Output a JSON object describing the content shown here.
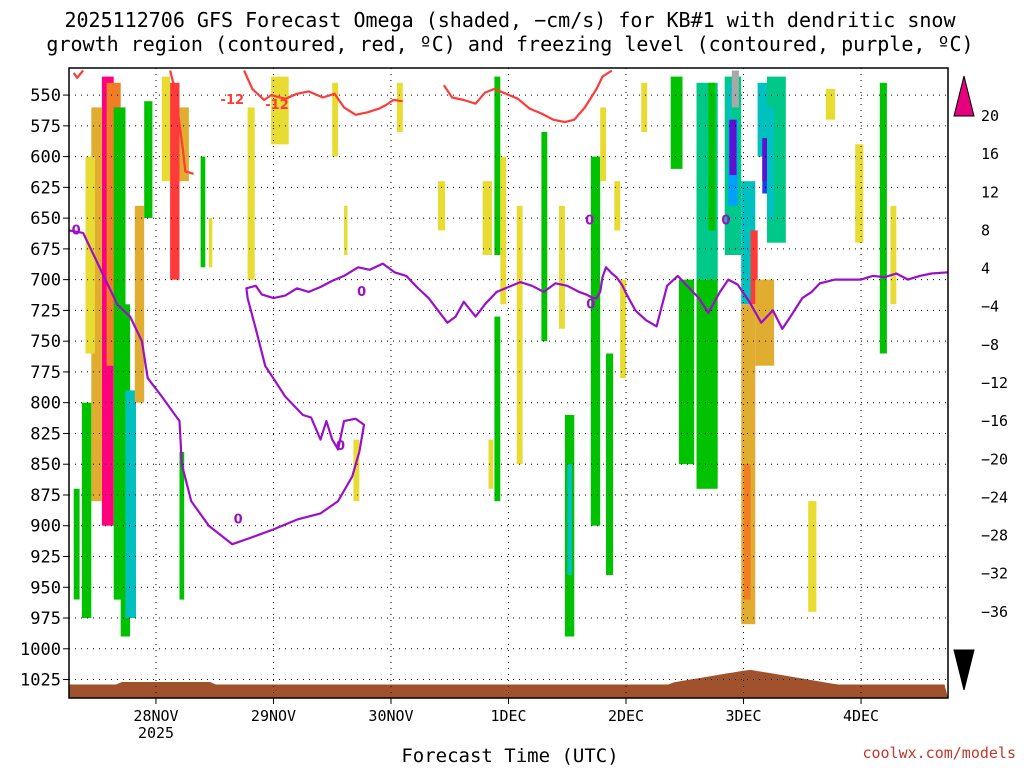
{
  "chart_data": {
    "type": "heatmap",
    "title_line1": "2025112706 GFS Forecast Omega (shaded, −cm/s) for KB#1 with dendritic snow",
    "title_line2": "growth region (contoured, red, ºC) and freezing level (contoured, purple, ºC)",
    "xlabel": "Forecast Time (UTC)",
    "credit": "coolwx.com/models",
    "y_axis": {
      "unit": "hPa",
      "reversed": true,
      "ylim": [
        1040,
        528
      ],
      "ticks": [
        550,
        575,
        600,
        625,
        650,
        675,
        700,
        725,
        750,
        775,
        800,
        825,
        850,
        875,
        900,
        925,
        950,
        975,
        1000,
        1025
      ]
    },
    "x_axis": {
      "range_days": [
        -0.74,
        6.74
      ],
      "ticks": [
        {
          "label": "28NOV",
          "day": 0,
          "sub": "2025"
        },
        {
          "label": "29NOV",
          "day": 1
        },
        {
          "label": "30NOV",
          "day": 2
        },
        {
          "label": "1DEC",
          "day": 3
        },
        {
          "label": "2DEC",
          "day": 4
        },
        {
          "label": "3DEC",
          "day": 5
        },
        {
          "label": "4DEC",
          "day": 6
        }
      ]
    },
    "grid": "dotted",
    "colorbar": {
      "placement": "right",
      "ticks": [
        "20",
        "16",
        "12",
        "8",
        "4",
        "−4",
        "−8",
        "−12",
        "−16",
        "−20",
        "−24",
        "−28",
        "−32",
        "−36"
      ],
      "colors": [
        "#ff007f",
        "#ff3a3a",
        "#f07e24",
        "#e0ad30",
        "#e8dc32",
        "#ffffff",
        "#00c200",
        "#00c888",
        "#00c0c0",
        "#00a0ff",
        "#1f3fe8",
        "#6010d0",
        "#9000d0",
        "#a8a8a8"
      ],
      "top_arrow": "#e5007e",
      "bottom_arrow": "#000000"
    },
    "shaded_cells": [
      {
        "d0": -0.46,
        "d1": -0.36,
        "p0": 535,
        "p1": 900,
        "c": 0
      },
      {
        "d0": -0.42,
        "d1": -0.3,
        "p0": 540,
        "p1": 770,
        "c": 2
      },
      {
        "d0": -0.55,
        "d1": -0.46,
        "p0": 560,
        "p1": 880,
        "c": 3
      },
      {
        "d0": -0.36,
        "d1": -0.26,
        "p0": 560,
        "p1": 960,
        "c": 6
      },
      {
        "d0": -0.3,
        "d1": -0.22,
        "p0": 720,
        "p1": 990,
        "c": 6
      },
      {
        "d0": -0.26,
        "d1": -0.17,
        "p0": 790,
        "p1": 975,
        "c": 8
      },
      {
        "d0": -0.6,
        "d1": -0.52,
        "p0": 600,
        "p1": 760,
        "c": 4
      },
      {
        "d0": -0.63,
        "d1": -0.55,
        "p0": 800,
        "p1": 975,
        "c": 6
      },
      {
        "d0": -0.7,
        "d1": -0.65,
        "p0": 870,
        "p1": 960,
        "c": 6
      },
      {
        "d0": -0.18,
        "d1": -0.1,
        "p0": 640,
        "p1": 800,
        "c": 3
      },
      {
        "d0": -0.1,
        "d1": -0.03,
        "p0": 555,
        "p1": 650,
        "c": 6
      },
      {
        "d0": 0.05,
        "d1": 0.12,
        "p0": 535,
        "p1": 620,
        "c": 4
      },
      {
        "d0": 0.12,
        "d1": 0.2,
        "p0": 540,
        "p1": 700,
        "c": 1
      },
      {
        "d0": 0.2,
        "d1": 0.28,
        "p0": 560,
        "p1": 620,
        "c": 3
      },
      {
        "d0": 0.2,
        "d1": 0.24,
        "p0": 840,
        "p1": 960,
        "c": 6
      },
      {
        "d0": 0.38,
        "d1": 0.42,
        "p0": 600,
        "p1": 690,
        "c": 6
      },
      {
        "d0": 0.45,
        "d1": 0.48,
        "p0": 650,
        "p1": 690,
        "c": 4
      },
      {
        "d0": 0.78,
        "d1": 0.84,
        "p0": 560,
        "p1": 700,
        "c": 4
      },
      {
        "d0": 0.98,
        "d1": 1.13,
        "p0": 535,
        "p1": 590,
        "c": 4
      },
      {
        "d0": 1.5,
        "d1": 1.55,
        "p0": 540,
        "p1": 600,
        "c": 4
      },
      {
        "d0": 1.6,
        "d1": 1.63,
        "p0": 640,
        "p1": 680,
        "c": 4
      },
      {
        "d0": 1.68,
        "d1": 1.73,
        "p0": 830,
        "p1": 880,
        "c": 4
      },
      {
        "d0": 2.05,
        "d1": 2.1,
        "p0": 540,
        "p1": 580,
        "c": 4
      },
      {
        "d0": 2.4,
        "d1": 2.46,
        "p0": 620,
        "p1": 660,
        "c": 4
      },
      {
        "d0": 2.78,
        "d1": 2.86,
        "p0": 620,
        "p1": 680,
        "c": 4
      },
      {
        "d0": 2.83,
        "d1": 2.87,
        "p0": 830,
        "p1": 870,
        "c": 4
      },
      {
        "d0": 2.88,
        "d1": 2.93,
        "p0": 535,
        "p1": 680,
        "c": 6
      },
      {
        "d0": 2.93,
        "d1": 2.98,
        "p0": 600,
        "p1": 720,
        "c": 4
      },
      {
        "d0": 3.07,
        "d1": 3.12,
        "p0": 640,
        "p1": 850,
        "c": 4
      },
      {
        "d0": 2.88,
        "d1": 2.93,
        "p0": 730,
        "p1": 880,
        "c": 6
      },
      {
        "d0": 3.28,
        "d1": 3.33,
        "p0": 580,
        "p1": 750,
        "c": 6
      },
      {
        "d0": 3.43,
        "d1": 3.48,
        "p0": 640,
        "p1": 740,
        "c": 4
      },
      {
        "d0": 3.48,
        "d1": 3.56,
        "p0": 810,
        "p1": 990,
        "c": 6
      },
      {
        "d0": 3.5,
        "d1": 3.54,
        "p0": 850,
        "p1": 940,
        "c": 8
      },
      {
        "d0": 3.7,
        "d1": 3.78,
        "p0": 600,
        "p1": 900,
        "c": 6
      },
      {
        "d0": 3.78,
        "d1": 3.83,
        "p0": 560,
        "p1": 620,
        "c": 4
      },
      {
        "d0": 3.83,
        "d1": 3.89,
        "p0": 760,
        "p1": 940,
        "c": 6
      },
      {
        "d0": 3.9,
        "d1": 3.95,
        "p0": 620,
        "p1": 660,
        "c": 4
      },
      {
        "d0": 3.95,
        "d1": 4.0,
        "p0": 700,
        "p1": 780,
        "c": 4
      },
      {
        "d0": 4.13,
        "d1": 4.18,
        "p0": 540,
        "p1": 580,
        "c": 4
      },
      {
        "d0": 4.38,
        "d1": 4.48,
        "p0": 535,
        "p1": 610,
        "c": 6
      },
      {
        "d0": 4.45,
        "d1": 4.58,
        "p0": 700,
        "p1": 850,
        "c": 6
      },
      {
        "d0": 4.6,
        "d1": 4.78,
        "p0": 540,
        "p1": 700,
        "c": 7
      },
      {
        "d0": 4.6,
        "d1": 4.78,
        "p0": 700,
        "p1": 870,
        "c": 6
      },
      {
        "d0": 4.7,
        "d1": 4.76,
        "p0": 540,
        "p1": 660,
        "c": 6
      },
      {
        "d0": 4.84,
        "d1": 4.98,
        "p0": 535,
        "p1": 680,
        "c": 7
      },
      {
        "d0": 4.86,
        "d1": 4.9,
        "p0": 540,
        "p1": 570,
        "c": 8
      },
      {
        "d0": 4.87,
        "d1": 4.95,
        "p0": 570,
        "p1": 640,
        "c": 9
      },
      {
        "d0": 4.9,
        "d1": 4.96,
        "p0": 530,
        "p1": 560,
        "c": 13
      },
      {
        "d0": 4.88,
        "d1": 4.94,
        "p0": 570,
        "p1": 615,
        "c": 11
      },
      {
        "d0": 4.98,
        "d1": 5.1,
        "p0": 620,
        "p1": 720,
        "c": 8
      },
      {
        "d0": 4.98,
        "d1": 5.1,
        "p0": 720,
        "p1": 980,
        "c": 3
      },
      {
        "d0": 5.06,
        "d1": 5.12,
        "p0": 660,
        "p1": 720,
        "c": 1
      },
      {
        "d0": 5.0,
        "d1": 5.06,
        "p0": 850,
        "p1": 960,
        "c": 2
      },
      {
        "d0": 5.1,
        "d1": 5.26,
        "p0": 700,
        "p1": 770,
        "c": 3
      },
      {
        "d0": 5.12,
        "d1": 5.2,
        "p0": 540,
        "p1": 600,
        "c": 8
      },
      {
        "d0": 5.16,
        "d1": 5.22,
        "p0": 590,
        "p1": 630,
        "c": 10
      },
      {
        "d0": 5.16,
        "d1": 5.22,
        "p0": 585,
        "p1": 620,
        "c": 11
      },
      {
        "d0": 5.2,
        "d1": 5.36,
        "p0": 535,
        "p1": 670,
        "c": 7
      },
      {
        "d0": 5.2,
        "d1": 5.26,
        "p0": 560,
        "p1": 650,
        "c": 8
      },
      {
        "d0": 5.7,
        "d1": 5.78,
        "p0": 545,
        "p1": 570,
        "c": 4
      },
      {
        "d0": 5.55,
        "d1": 5.62,
        "p0": 880,
        "p1": 970,
        "c": 4
      },
      {
        "d0": 5.95,
        "d1": 6.02,
        "p0": 590,
        "p1": 670,
        "c": 4
      },
      {
        "d0": 6.16,
        "d1": 6.22,
        "p0": 540,
        "p1": 760,
        "c": 6
      },
      {
        "d0": 6.25,
        "d1": 6.3,
        "p0": 640,
        "p1": 720,
        "c": 4
      }
    ],
    "contours": [
      {
        "name": "-12",
        "color": "#ff3a3a",
        "label": "-12",
        "label_at": [
          [
            0.65,
            554
          ],
          [
            1.03,
            558
          ]
        ],
        "segments": [
          [
            [
              -0.7,
              532
            ],
            [
              -0.67,
              536
            ],
            [
              -0.62,
              530
            ]
          ],
          [
            [
              0.12,
              530
            ],
            [
              0.16,
              545
            ],
            [
              0.23,
              595
            ],
            [
              0.25,
              612
            ],
            [
              0.32,
              614
            ]
          ],
          [
            [
              0.75,
              530
            ],
            [
              0.82,
              545
            ],
            [
              0.92,
              554
            ],
            [
              0.98,
              550
            ],
            [
              1.1,
              553
            ],
            [
              1.2,
              549
            ],
            [
              1.3,
              547
            ],
            [
              1.42,
              552
            ],
            [
              1.52,
              549
            ],
            [
              1.6,
              560
            ],
            [
              1.7,
              566
            ],
            [
              1.8,
              564
            ],
            [
              1.9,
              561
            ],
            [
              1.96,
              558
            ],
            [
              2.02,
              554
            ],
            [
              2.1,
              555
            ]
          ],
          [
            [
              2.45,
              542
            ],
            [
              2.52,
              552
            ],
            [
              2.62,
              554
            ],
            [
              2.72,
              557
            ],
            [
              2.8,
              548
            ],
            [
              2.88,
              545
            ],
            [
              2.98,
              549
            ],
            [
              3.08,
              553
            ],
            [
              3.18,
              561
            ],
            [
              3.28,
              565
            ],
            [
              3.38,
              570
            ],
            [
              3.48,
              572
            ],
            [
              3.56,
              570
            ],
            [
              3.65,
              560
            ],
            [
              3.75,
              545
            ],
            [
              3.8,
              535
            ],
            [
              3.88,
              530
            ]
          ]
        ]
      },
      {
        "name": "0",
        "color": "#9a10c8",
        "label": "0",
        "label_at": [
          [
            -0.68,
            660
          ],
          [
            1.75,
            710
          ],
          [
            3.7,
            720
          ],
          [
            3.69,
            652
          ],
          [
            4.85,
            652
          ],
          [
            0.7,
            895
          ],
          [
            1.57,
            835
          ]
        ],
        "segments": [
          [
            [
              -0.74,
              660
            ],
            [
              -0.62,
              662
            ],
            [
              -0.53,
              680
            ],
            [
              -0.43,
              700
            ],
            [
              -0.33,
              720
            ],
            [
              -0.22,
              730
            ],
            [
              -0.12,
              750
            ],
            [
              -0.07,
              780
            ],
            [
              0.05,
              795
            ],
            [
              0.2,
              815
            ],
            [
              0.22,
              850
            ],
            [
              0.3,
              880
            ],
            [
              0.45,
              900
            ],
            [
              0.65,
              915
            ],
            [
              0.8,
              910
            ],
            [
              1.0,
              903
            ],
            [
              1.2,
              895
            ],
            [
              1.4,
              890
            ],
            [
              1.55,
              880
            ],
            [
              1.67,
              860
            ],
            [
              1.73,
              840
            ],
            [
              1.77,
              818
            ],
            [
              1.7,
              813
            ],
            [
              1.6,
              815
            ],
            [
              1.55,
              838
            ],
            [
              1.5,
              830
            ],
            [
              1.45,
              815
            ],
            [
              1.4,
              830
            ],
            [
              1.32,
              812
            ],
            [
              1.25,
              810
            ],
            [
              1.1,
              795
            ],
            [
              0.93,
              770
            ],
            [
              0.85,
              740
            ],
            [
              0.78,
              715
            ],
            [
              0.77,
              707
            ],
            [
              0.85,
              705
            ],
            [
              0.9,
              712
            ],
            [
              1.0,
              715
            ],
            [
              1.1,
              713
            ],
            [
              1.2,
              707
            ],
            [
              1.3,
              710
            ],
            [
              1.4,
              706
            ],
            [
              1.5,
              701
            ],
            [
              1.6,
              697
            ],
            [
              1.72,
              690
            ],
            [
              1.82,
              692
            ],
            [
              1.93,
              687
            ],
            [
              2.03,
              694
            ],
            [
              2.13,
              697
            ],
            [
              2.22,
              706
            ],
            [
              2.32,
              715
            ],
            [
              2.4,
              725
            ],
            [
              2.48,
              735
            ],
            [
              2.55,
              730
            ],
            [
              2.62,
              718
            ],
            [
              2.72,
              730
            ],
            [
              2.8,
              720
            ],
            [
              2.9,
              710
            ],
            [
              3.0,
              706
            ],
            [
              3.1,
              702
            ],
            [
              3.2,
              705
            ],
            [
              3.3,
              710
            ],
            [
              3.4,
              703
            ],
            [
              3.5,
              705
            ],
            [
              3.6,
              710
            ],
            [
              3.66,
              712
            ],
            [
              3.72,
              715
            ],
            [
              3.75,
              715
            ],
            [
              3.78,
              710
            ],
            [
              3.8,
              698
            ],
            [
              3.83,
              690
            ],
            [
              3.88,
              695
            ],
            [
              3.92,
              698
            ],
            [
              3.97,
              705
            ],
            [
              4.0,
              711
            ],
            [
              4.08,
              725
            ],
            [
              4.17,
              733
            ],
            [
              4.26,
              738
            ],
            [
              4.35,
              705
            ],
            [
              4.44,
              697
            ],
            [
              4.52,
              705
            ],
            [
              4.62,
              715
            ],
            [
              4.7,
              727
            ],
            [
              4.8,
              710
            ],
            [
              4.87,
              700
            ],
            [
              4.95,
              704
            ],
            [
              5.05,
              718
            ],
            [
              5.15,
              735
            ],
            [
              5.25,
              725
            ],
            [
              5.33,
              740
            ],
            [
              5.4,
              730
            ],
            [
              5.5,
              715
            ],
            [
              5.58,
              710
            ],
            [
              5.65,
              703
            ],
            [
              5.78,
              700
            ],
            [
              5.88,
              700
            ],
            [
              6.0,
              700
            ],
            [
              6.1,
              697
            ],
            [
              6.2,
              698
            ],
            [
              6.3,
              695
            ],
            [
              6.4,
              700
            ],
            [
              6.5,
              697
            ],
            [
              6.6,
              695
            ],
            [
              6.74,
              694
            ]
          ]
        ]
      }
    ],
    "terrain_color": "#a0522d"
  }
}
